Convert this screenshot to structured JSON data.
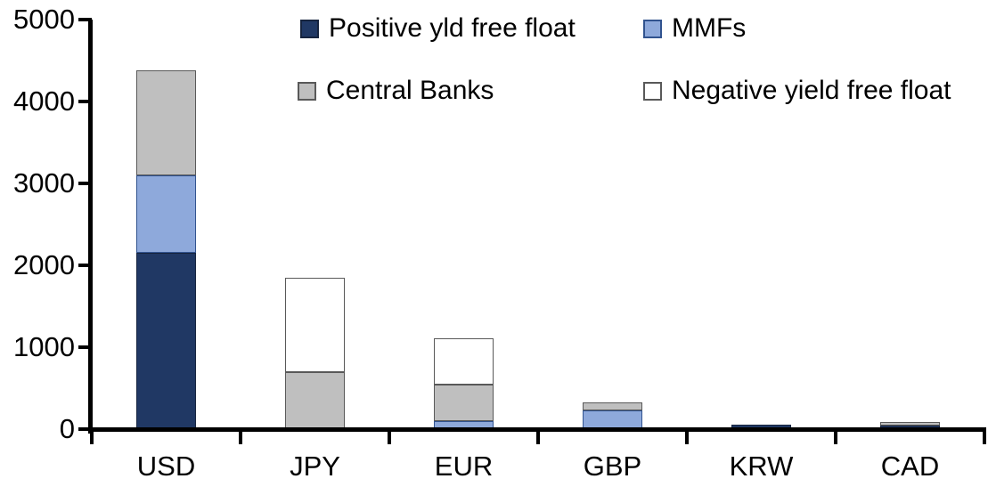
{
  "chart_data": {
    "type": "bar",
    "stacked": true,
    "title": "",
    "xlabel": "",
    "ylabel": "",
    "grid": false,
    "legend_position": "top",
    "background": "#FFFFFF",
    "axis_color": "#000000",
    "text_color": "#000000",
    "ylim": [
      0,
      5000
    ],
    "ytick_interval": 1000,
    "yticks": [
      "0",
      "1000",
      "2000",
      "3000",
      "4000",
      "5000"
    ],
    "categories": [
      "USD",
      "JPY",
      "EUR",
      "GBP",
      "KRW",
      "CAD"
    ],
    "series": [
      {
        "name": "Positive yld free float",
        "color": "#203864",
        "border_color": "#16243F",
        "values": [
          2150,
          0,
          0,
          0,
          55,
          45
        ]
      },
      {
        "name": "MMFs",
        "color": "#8EA9DB",
        "border_color": "#31538F",
        "values": [
          950,
          0,
          100,
          230,
          0,
          0
        ]
      },
      {
        "name": "Central Banks",
        "color": "#BFBFBF",
        "border_color": "#595959",
        "values": [
          1280,
          700,
          445,
          100,
          0,
          40
        ]
      },
      {
        "name": "Negative yield free float",
        "color": "#FFFFFF",
        "border_color": "#595959",
        "values": [
          0,
          1150,
          565,
          0,
          0,
          0
        ]
      }
    ]
  }
}
